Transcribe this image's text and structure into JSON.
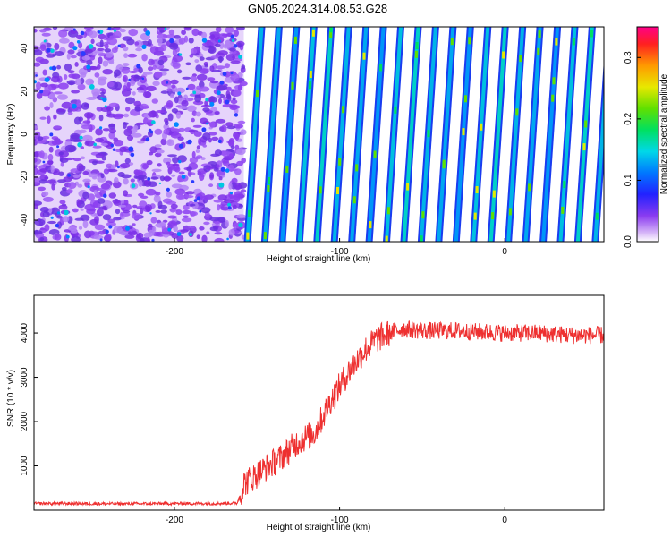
{
  "title": "GN05.2024.314.08.53.G28",
  "chart_data": [
    {
      "type": "heatmap",
      "xlabel": "Height of straight line (km)",
      "ylabel": "Frequency (Hz)",
      "xlim": [
        -285,
        60
      ],
      "ylim": [
        -50,
        50
      ],
      "x_ticks": [
        "-200",
        "-100",
        "0"
      ],
      "y_ticks": [
        "40",
        "20",
        "0",
        "-20",
        "-40"
      ],
      "colorbar": {
        "label": "Normalized spectral amplitude",
        "range": [
          0,
          0.35
        ],
        "ticks": [
          "0.0",
          "0.1",
          "0.2",
          "0.3"
        ]
      },
      "noise_region_x": [
        -285,
        -158
      ],
      "stripe_region_x": [
        -158,
        60
      ],
      "stripe_count": 21,
      "colors": {
        "noise": "#8a3cf0",
        "stripe": "#00b4e8",
        "background": "#ffffff"
      }
    },
    {
      "type": "line",
      "xlabel": "Height of straight line (km)",
      "ylabel": "SNR (10 * v/v)",
      "xlim": [
        -285,
        60
      ],
      "ylim": [
        0,
        4850
      ],
      "x_ticks": [
        "-200",
        "-100",
        "0"
      ],
      "y_ticks": [
        "1000",
        "2000",
        "3000",
        "4000"
      ],
      "series": [
        {
          "color": "#ee3030",
          "x": [
            -285,
            -260,
            -230,
            -200,
            -175,
            -162,
            -158,
            -152,
            -145,
            -135,
            -125,
            -115,
            -105,
            -95,
            -85,
            -78,
            -70,
            -62,
            -50,
            -30,
            0,
            20,
            40,
            60
          ],
          "y": [
            150,
            150,
            145,
            150,
            150,
            160,
            600,
            750,
            950,
            1200,
            1550,
            1750,
            2500,
            3100,
            3600,
            3850,
            4000,
            4100,
            4050,
            4050,
            4000,
            4000,
            3950,
            3950
          ]
        }
      ]
    }
  ]
}
